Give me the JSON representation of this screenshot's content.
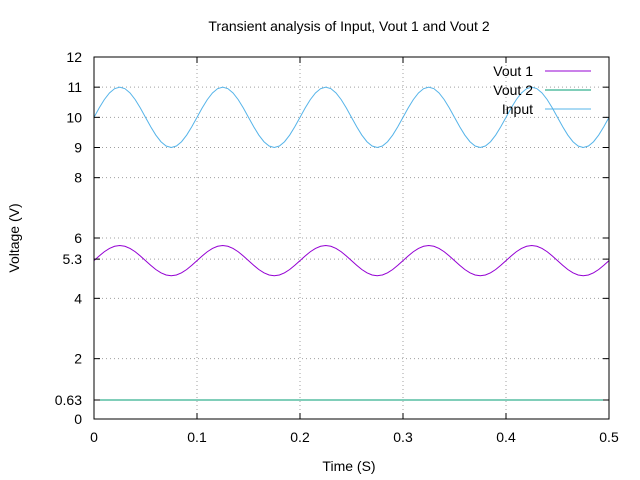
{
  "chart_data": {
    "type": "line",
    "title": "Transient analysis of Input, Vout 1 and Vout 2",
    "xlabel": "Time (S)",
    "ylabel": "Voltage (V)",
    "xlim": [
      0,
      0.5
    ],
    "ylim": [
      0,
      12
    ],
    "xticks": [
      0,
      0.1,
      0.2,
      0.3,
      0.4,
      0.5
    ],
    "xtick_labels": [
      "0",
      "0.1",
      "0.2",
      "0.3",
      "0.4",
      "0.5"
    ],
    "yticks": [
      0,
      0.63,
      2,
      4,
      5.3,
      6,
      8,
      9,
      10,
      11,
      12
    ],
    "ytick_labels": [
      "0",
      "0.63",
      "2",
      "4",
      "5.3",
      "6",
      "8",
      "9",
      "10",
      "11",
      "12"
    ],
    "grid": true,
    "legend_position": "top-right",
    "series": [
      {
        "name": "Vout 1",
        "color": "#9400d3",
        "kind": "sine",
        "offset": 5.25,
        "amplitude": 0.5,
        "frequency_hz": 10,
        "x_range": [
          0,
          0.5
        ]
      },
      {
        "name": "Vout 2",
        "color": "#009e73",
        "kind": "constant",
        "value": 0.63,
        "x_range": [
          0,
          0.5
        ]
      },
      {
        "name": "Input",
        "color": "#56b4e9",
        "kind": "sine",
        "offset": 10,
        "amplitude": 1,
        "frequency_hz": 10,
        "x_range": [
          0,
          0.5
        ]
      }
    ]
  }
}
